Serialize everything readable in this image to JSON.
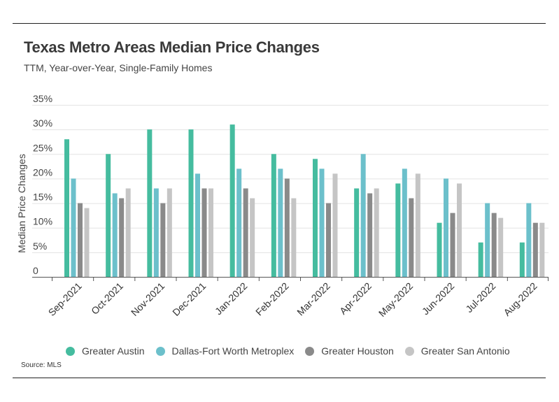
{
  "header": {
    "title": "Texas Metro Areas Median Price Changes",
    "subtitle": "TTM, Year-over-Year, Single-Family Homes"
  },
  "source": "Source:  MLS",
  "chart_data": {
    "type": "bar",
    "title": "Texas Metro Areas Median Price Changes",
    "subtitle": "TTM, Year-over-Year, Single-Family Homes",
    "ylabel": "Median Price Changes",
    "xlabel": "",
    "ylim": [
      0,
      35
    ],
    "ytick_values": [
      0,
      5,
      10,
      15,
      20,
      25,
      30,
      35
    ],
    "ytick_labels": [
      "0",
      "5%",
      "10%",
      "15%",
      "20%",
      "25%",
      "30%",
      "35%"
    ],
    "grid": true,
    "legend_position": "bottom",
    "categories": [
      "Sep-2021",
      "Oct-2021",
      "Nov-2021",
      "Dec-2021",
      "Jan-2022",
      "Feb-2022",
      "Mar-2022",
      "Apr-2022",
      "May-2022",
      "Jun-2022",
      "Jul-2022",
      "Aug-2022"
    ],
    "series": [
      {
        "name": "Greater Austin",
        "color": "#45bc9f",
        "values": [
          28,
          25,
          30,
          30,
          31,
          25,
          24,
          18,
          19,
          11,
          7,
          7
        ]
      },
      {
        "name": "Dallas-Fort Worth Metroplex",
        "color": "#6cc0cb",
        "values": [
          20,
          17,
          18,
          21,
          22,
          22,
          22,
          25,
          22,
          20,
          15,
          15
        ]
      },
      {
        "name": "Greater Houston",
        "color": "#8a8a8a",
        "values": [
          15,
          16,
          15,
          18,
          18,
          20,
          15,
          17,
          16,
          13,
          13,
          11
        ]
      },
      {
        "name": "Greater San Antonio",
        "color": "#c5c5c5",
        "values": [
          14,
          18,
          18,
          18,
          16,
          16,
          21,
          18,
          21,
          19,
          12,
          11
        ]
      }
    ]
  }
}
